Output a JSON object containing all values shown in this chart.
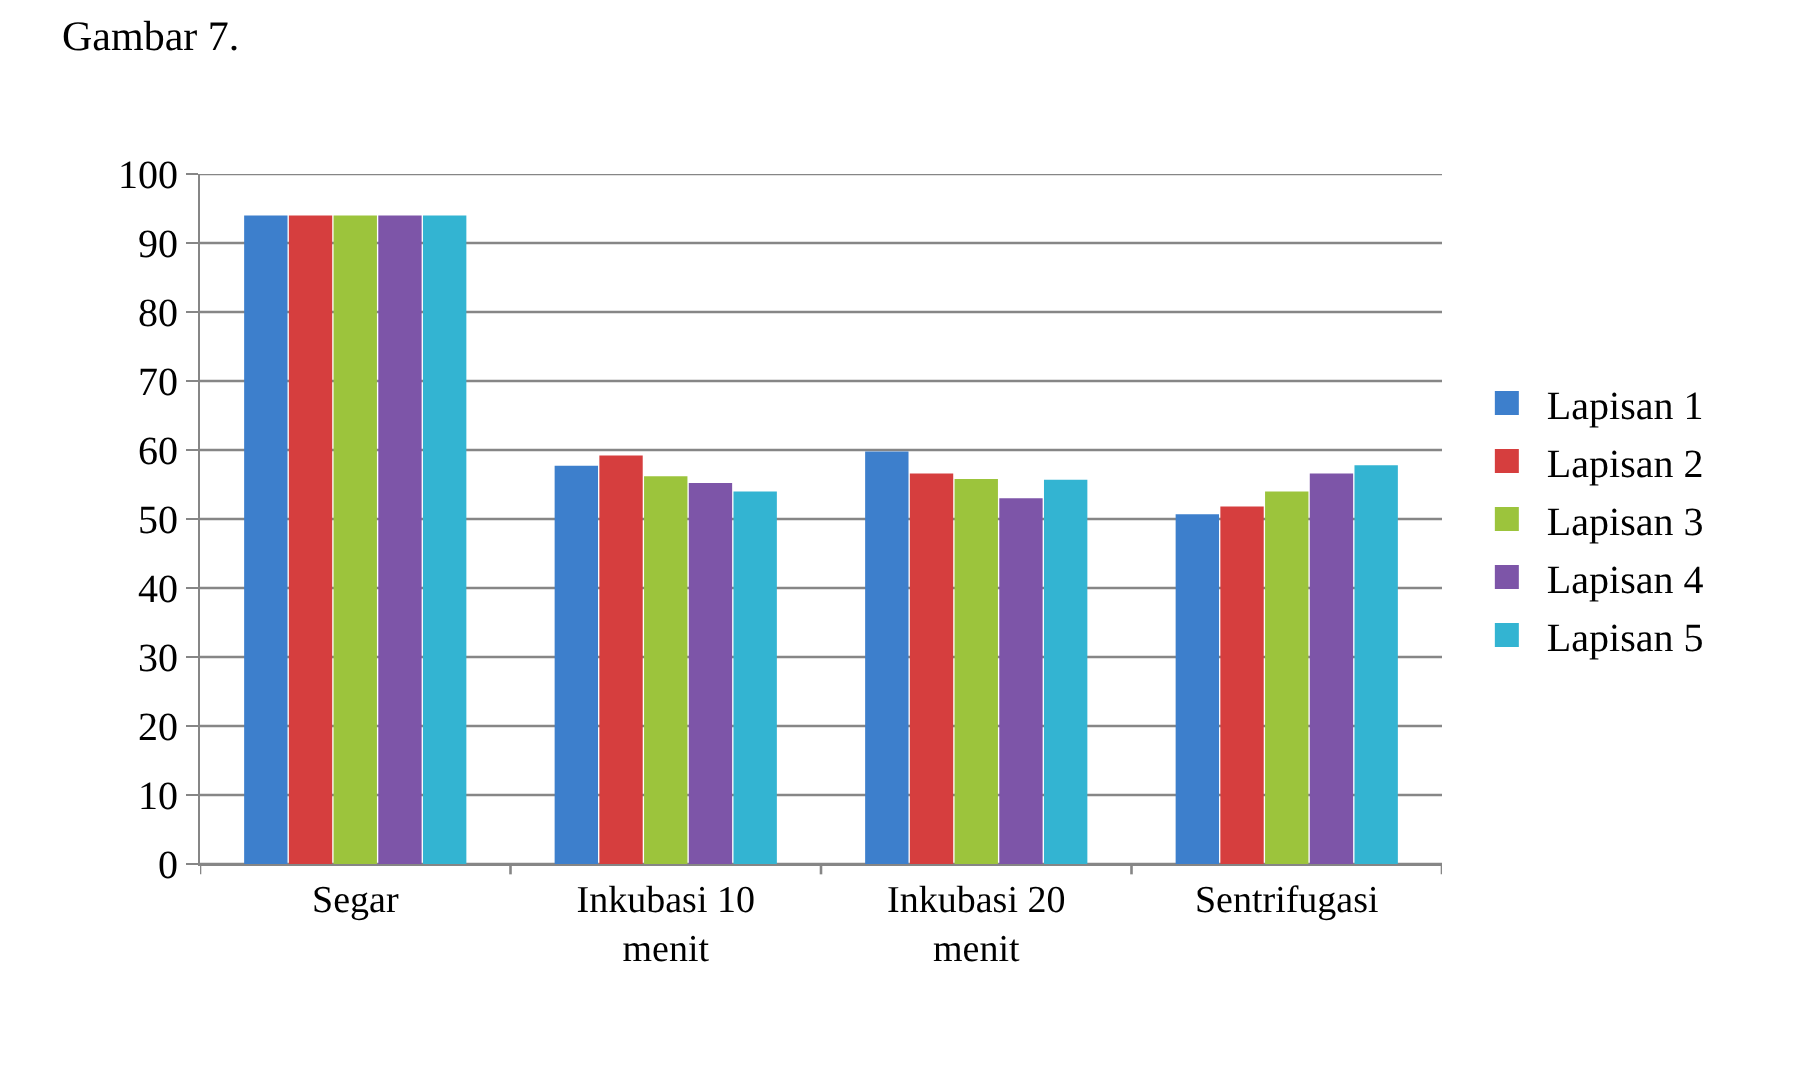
{
  "chart_data": {
    "type": "bar",
    "categories": [
      "Segar",
      "Inkubasi 10 menit",
      "Inkubasi 20 menit",
      "Sentrifugasi"
    ],
    "series": [
      {
        "name": "Lapisan 1",
        "color": "#3d7fcc",
        "values": [
          94,
          57.7,
          59.8,
          50.7
        ]
      },
      {
        "name": "Lapisan 2",
        "color": "#d63e3e",
        "values": [
          94,
          59.2,
          56.6,
          51.8
        ]
      },
      {
        "name": "Lapisan 3",
        "color": "#9cc43c",
        "values": [
          94,
          56.2,
          55.8,
          54
        ]
      },
      {
        "name": "Lapisan 4",
        "color": "#7d55a8",
        "values": [
          94,
          55.2,
          53,
          56.6
        ]
      },
      {
        "name": "Lapisan 5",
        "color": "#33b4d2",
        "values": [
          94,
          54,
          55.7,
          57.8
        ]
      }
    ],
    "ylim": [
      0,
      100
    ],
    "yticks": [
      0,
      10,
      20,
      30,
      40,
      50,
      60,
      70,
      80,
      90,
      100
    ],
    "grid": "y",
    "legend": "right",
    "annotations": [
      "Gambar 7."
    ]
  }
}
